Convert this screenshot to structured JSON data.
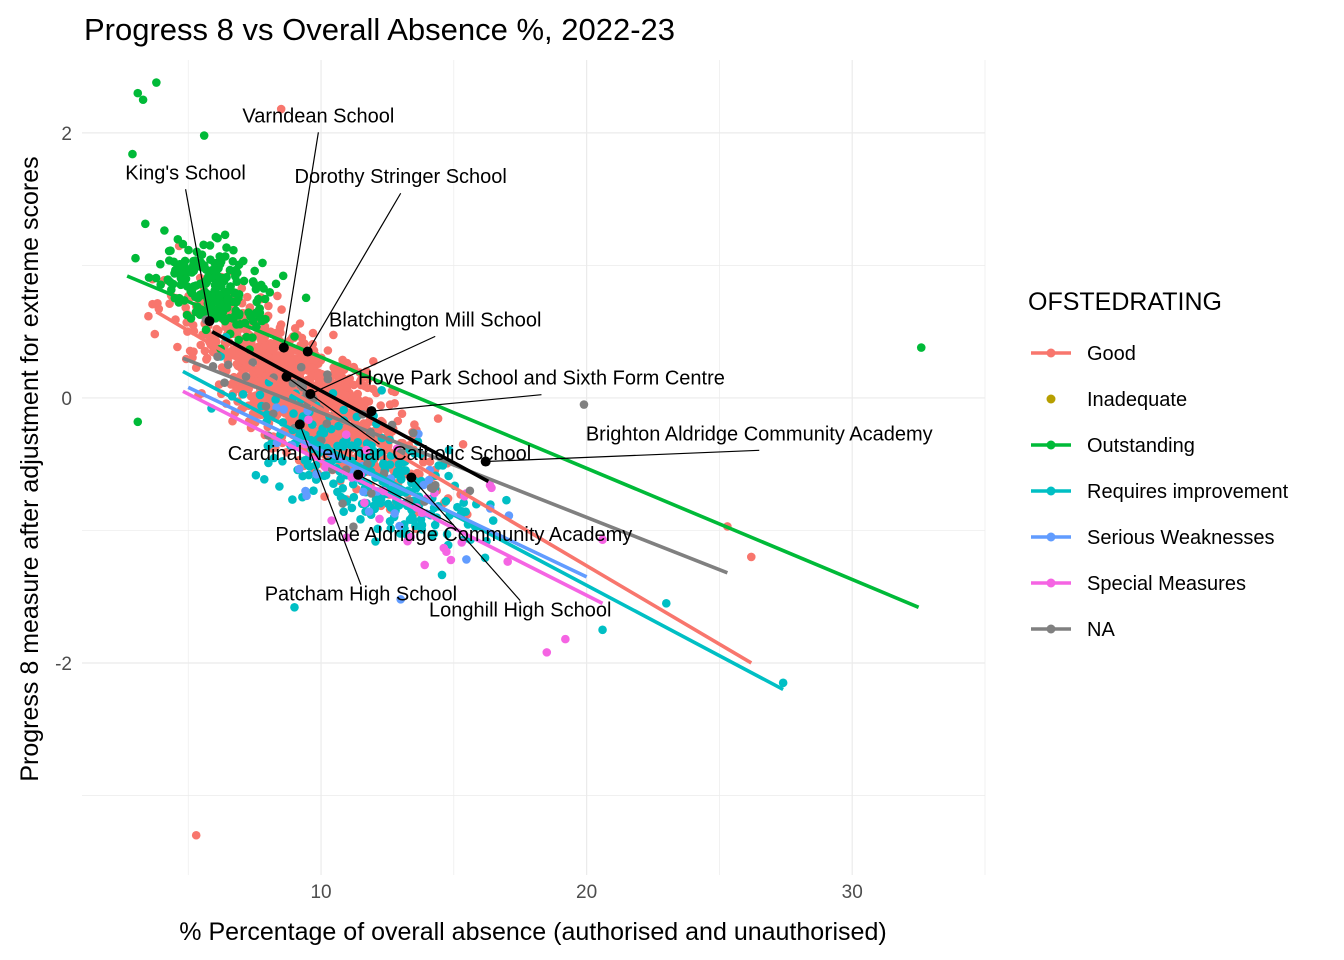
{
  "chart_data": {
    "type": "scatter",
    "title": "Progress 8 vs Overall Absence %, 2022-23",
    "xlabel": "% Percentage of overall absence (authorised and unauthorised)",
    "ylabel": "Progress 8 measure after adjustment for extreme scores",
    "xlim": [
      1.0,
      35.0
    ],
    "ylim": [
      -3.6,
      2.55
    ],
    "xticks": [
      10,
      20,
      30
    ],
    "yticks": [
      -2,
      0,
      2
    ],
    "grid": true,
    "legend": {
      "title": "OFSTEDRATING",
      "position": "right",
      "entries": [
        {
          "name": "Good",
          "color": "#F8766D"
        },
        {
          "name": "Inadequate",
          "color": "#B79F00"
        },
        {
          "name": "Outstanding",
          "color": "#00BA38"
        },
        {
          "name": "Requires improvement",
          "color": "#00BFC4"
        },
        {
          "name": "Serious Weaknesses",
          "color": "#619CFF"
        },
        {
          "name": "Special Measures",
          "color": "#F564E3"
        },
        {
          "name": "NA",
          "color": "#808080"
        }
      ]
    },
    "trend_lines": [
      {
        "series": "Good",
        "x": [
          3.8,
          26.2
        ],
        "y": [
          0.65,
          -2.0
        ]
      },
      {
        "series": "Outstanding",
        "x": [
          2.7,
          32.5
        ],
        "y": [
          0.92,
          -1.58
        ]
      },
      {
        "series": "Requires improvement",
        "x": [
          4.8,
          27.4
        ],
        "y": [
          0.2,
          -2.2
        ]
      },
      {
        "series": "Serious Weaknesses",
        "x": [
          5.0,
          20.0
        ],
        "y": [
          0.08,
          -1.35
        ]
      },
      {
        "series": "Special Measures",
        "x": [
          4.8,
          20.6
        ],
        "y": [
          0.05,
          -1.55
        ]
      },
      {
        "series": "NA",
        "x": [
          4.8,
          25.3
        ],
        "y": [
          0.3,
          -1.32
        ]
      },
      {
        "series": "Brighton",
        "x": [
          5.9,
          16.3
        ],
        "y": [
          0.5,
          -0.63
        ]
      }
    ],
    "highlight_color": "#000000",
    "highlighted_schools": [
      {
        "name": "Varndean School",
        "x": 8.6,
        "y": 0.38,
        "label_x": 9.9,
        "label_y": 2.08,
        "anchor": "middle"
      },
      {
        "name": "King's School",
        "x": 5.8,
        "y": 0.58,
        "label_x": 4.9,
        "label_y": 1.65,
        "anchor": "middle"
      },
      {
        "name": "Dorothy Stringer School",
        "x": 9.5,
        "y": 0.35,
        "label_x": 13.0,
        "label_y": 1.62,
        "anchor": "middle"
      },
      {
        "name": "Blatchington Mill School",
        "x": 9.6,
        "y": 0.03,
        "label_x": 14.3,
        "label_y": 0.54,
        "anchor": "middle"
      },
      {
        "name": "Hove Park School and Sixth Form Centre",
        "x": 11.9,
        "y": -0.1,
        "label_x": 18.3,
        "label_y": 0.1,
        "anchor": "middle"
      },
      {
        "name": "Brighton Aldridge Community Academy",
        "x": 16.2,
        "y": -0.48,
        "label_x": 26.5,
        "label_y": -0.32,
        "anchor": "middle"
      },
      {
        "name": "Cardinal Newman Catholic School",
        "x": 8.7,
        "y": 0.16,
        "label_x": 12.2,
        "label_y": -0.47,
        "anchor": "middle"
      },
      {
        "name": "Portslade Aldridge Community Academy",
        "x": 11.4,
        "y": -0.58,
        "label_x": 15.0,
        "label_y": -1.08,
        "anchor": "middle"
      },
      {
        "name": "Patcham High School",
        "x": 9.2,
        "y": -0.2,
        "label_x": 11.5,
        "label_y": -1.53,
        "anchor": "middle"
      },
      {
        "name": "Longhill High School",
        "x": 13.4,
        "y": -0.6,
        "label_x": 17.5,
        "label_y": -1.65,
        "anchor": "middle"
      }
    ],
    "outlier_points": [
      {
        "series": "Outstanding",
        "x": 3.8,
        "y": 2.38
      },
      {
        "series": "Outstanding",
        "x": 3.1,
        "y": 2.3
      },
      {
        "series": "Outstanding",
        "x": 3.3,
        "y": 2.25
      },
      {
        "series": "Outstanding",
        "x": 2.9,
        "y": 1.84
      },
      {
        "series": "Outstanding",
        "x": 5.6,
        "y": 1.98
      },
      {
        "series": "Good",
        "x": 8.5,
        "y": 2.18
      },
      {
        "series": "Outstanding",
        "x": 32.6,
        "y": 0.38
      },
      {
        "series": "NA",
        "x": 19.9,
        "y": -0.05
      },
      {
        "series": "Good",
        "x": 5.3,
        "y": -3.3
      },
      {
        "series": "Requires improvement",
        "x": 27.4,
        "y": -2.15
      },
      {
        "series": "Good",
        "x": 26.2,
        "y": -1.2
      },
      {
        "series": "Good",
        "x": 25.3,
        "y": -0.97
      },
      {
        "series": "Requires improvement",
        "x": 23.0,
        "y": -1.55
      },
      {
        "series": "Special Measures",
        "x": 20.6,
        "y": -1.07
      },
      {
        "series": "Special Measures",
        "x": 18.5,
        "y": -1.92
      },
      {
        "series": "Special Measures",
        "x": 19.2,
        "y": -1.82
      },
      {
        "series": "Requires improvement",
        "x": 20.6,
        "y": -1.75
      },
      {
        "series": "Serious Weaknesses",
        "x": 13.0,
        "y": -1.52
      },
      {
        "series": "Requires improvement",
        "x": 9.0,
        "y": -1.58
      },
      {
        "series": "Outstanding",
        "x": 3.1,
        "y": -0.18
      }
    ],
    "point_clouds": [
      {
        "series": "Good",
        "n": 1150,
        "x_range": [
          3.5,
          20.0
        ],
        "center_x": 9.3,
        "spread_x": 2.9,
        "slope": -0.13,
        "intercept": 1.25,
        "noise": 0.32
      },
      {
        "series": "Outstanding",
        "n": 220,
        "x_range": [
          2.8,
          11.5
        ],
        "center_x": 6.2,
        "spread_x": 1.8,
        "slope": -0.1,
        "intercept": 1.45,
        "noise": 0.25
      },
      {
        "series": "Requires improvement",
        "n": 260,
        "x_range": [
          5.5,
          22.0
        ],
        "center_x": 11.8,
        "spread_x": 3.0,
        "slope": -0.1,
        "intercept": 0.6,
        "noise": 0.3
      },
      {
        "series": "Serious Weaknesses",
        "n": 28,
        "x_range": [
          6.0,
          19.5
        ],
        "center_x": 12.0,
        "spread_x": 3.0,
        "slope": -0.095,
        "intercept": 0.55,
        "noise": 0.3
      },
      {
        "series": "Special Measures",
        "n": 30,
        "x_range": [
          6.0,
          20.0
        ],
        "center_x": 13.0,
        "spread_x": 3.0,
        "slope": -0.1,
        "intercept": 0.5,
        "noise": 0.3
      },
      {
        "series": "NA",
        "n": 45,
        "x_range": [
          4.5,
          19.5
        ],
        "center_x": 10.5,
        "spread_x": 3.0,
        "slope": -0.1,
        "intercept": 0.85,
        "noise": 0.32
      }
    ]
  }
}
